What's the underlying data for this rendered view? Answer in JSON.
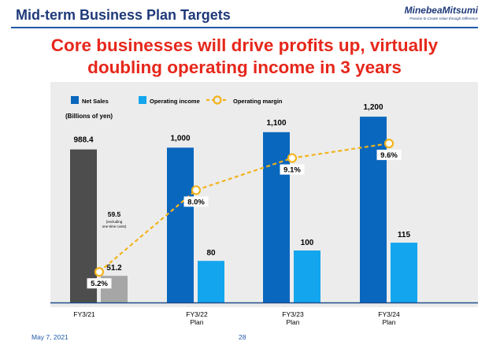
{
  "header": {
    "title": "Mid-term Business Plan Targets",
    "brand_name": "MinebeaMitsumi",
    "brand_tagline": "Passion to Create Value through Difference"
  },
  "headline": {
    "line1": "Core businesses will drive profits up, virtually",
    "line2": "doubling operating income in 3 years"
  },
  "footer": {
    "date": "May 7, 2021",
    "page": "28"
  },
  "colors": {
    "net_sales_actual": "#4d4d4d",
    "net_sales_plan": "#0a67be",
    "operating_income_actual": "#a6a6a6",
    "operating_income_plan": "#13a6ee",
    "operating_margin": "#f2b41c",
    "title": "#1f3a7a",
    "headline": "#e6271b"
  },
  "chart_data": {
    "type": "bar",
    "unit_label": "(Billions of yen)",
    "categories": [
      {
        "line1": "FY3/21",
        "line2": ""
      },
      {
        "line1": "FY3/22",
        "line2": "Plan"
      },
      {
        "line1": "FY3/23",
        "line2": "Plan"
      },
      {
        "line1": "FY3/24",
        "line2": "Plan"
      }
    ],
    "series": [
      {
        "name": "Net Sales",
        "values": [
          988.4,
          1000,
          1100,
          1200
        ],
        "labels": [
          "988.4",
          "1,000",
          "1,100",
          "1,200"
        ]
      },
      {
        "name": "Operating income",
        "values": [
          51.2,
          80,
          100,
          115
        ],
        "labels": [
          "51.2",
          "80",
          "100",
          "115"
        ]
      },
      {
        "name": "Operating margin",
        "values": [
          5.2,
          8.0,
          9.1,
          9.6
        ],
        "labels": [
          "5.2%",
          "8.0%",
          "9.1%",
          "9.6%"
        ],
        "style": "dashed-line"
      }
    ],
    "annotation": {
      "value": "59.5",
      "line1": "(excluding",
      "line2": "one-time costs)"
    }
  }
}
